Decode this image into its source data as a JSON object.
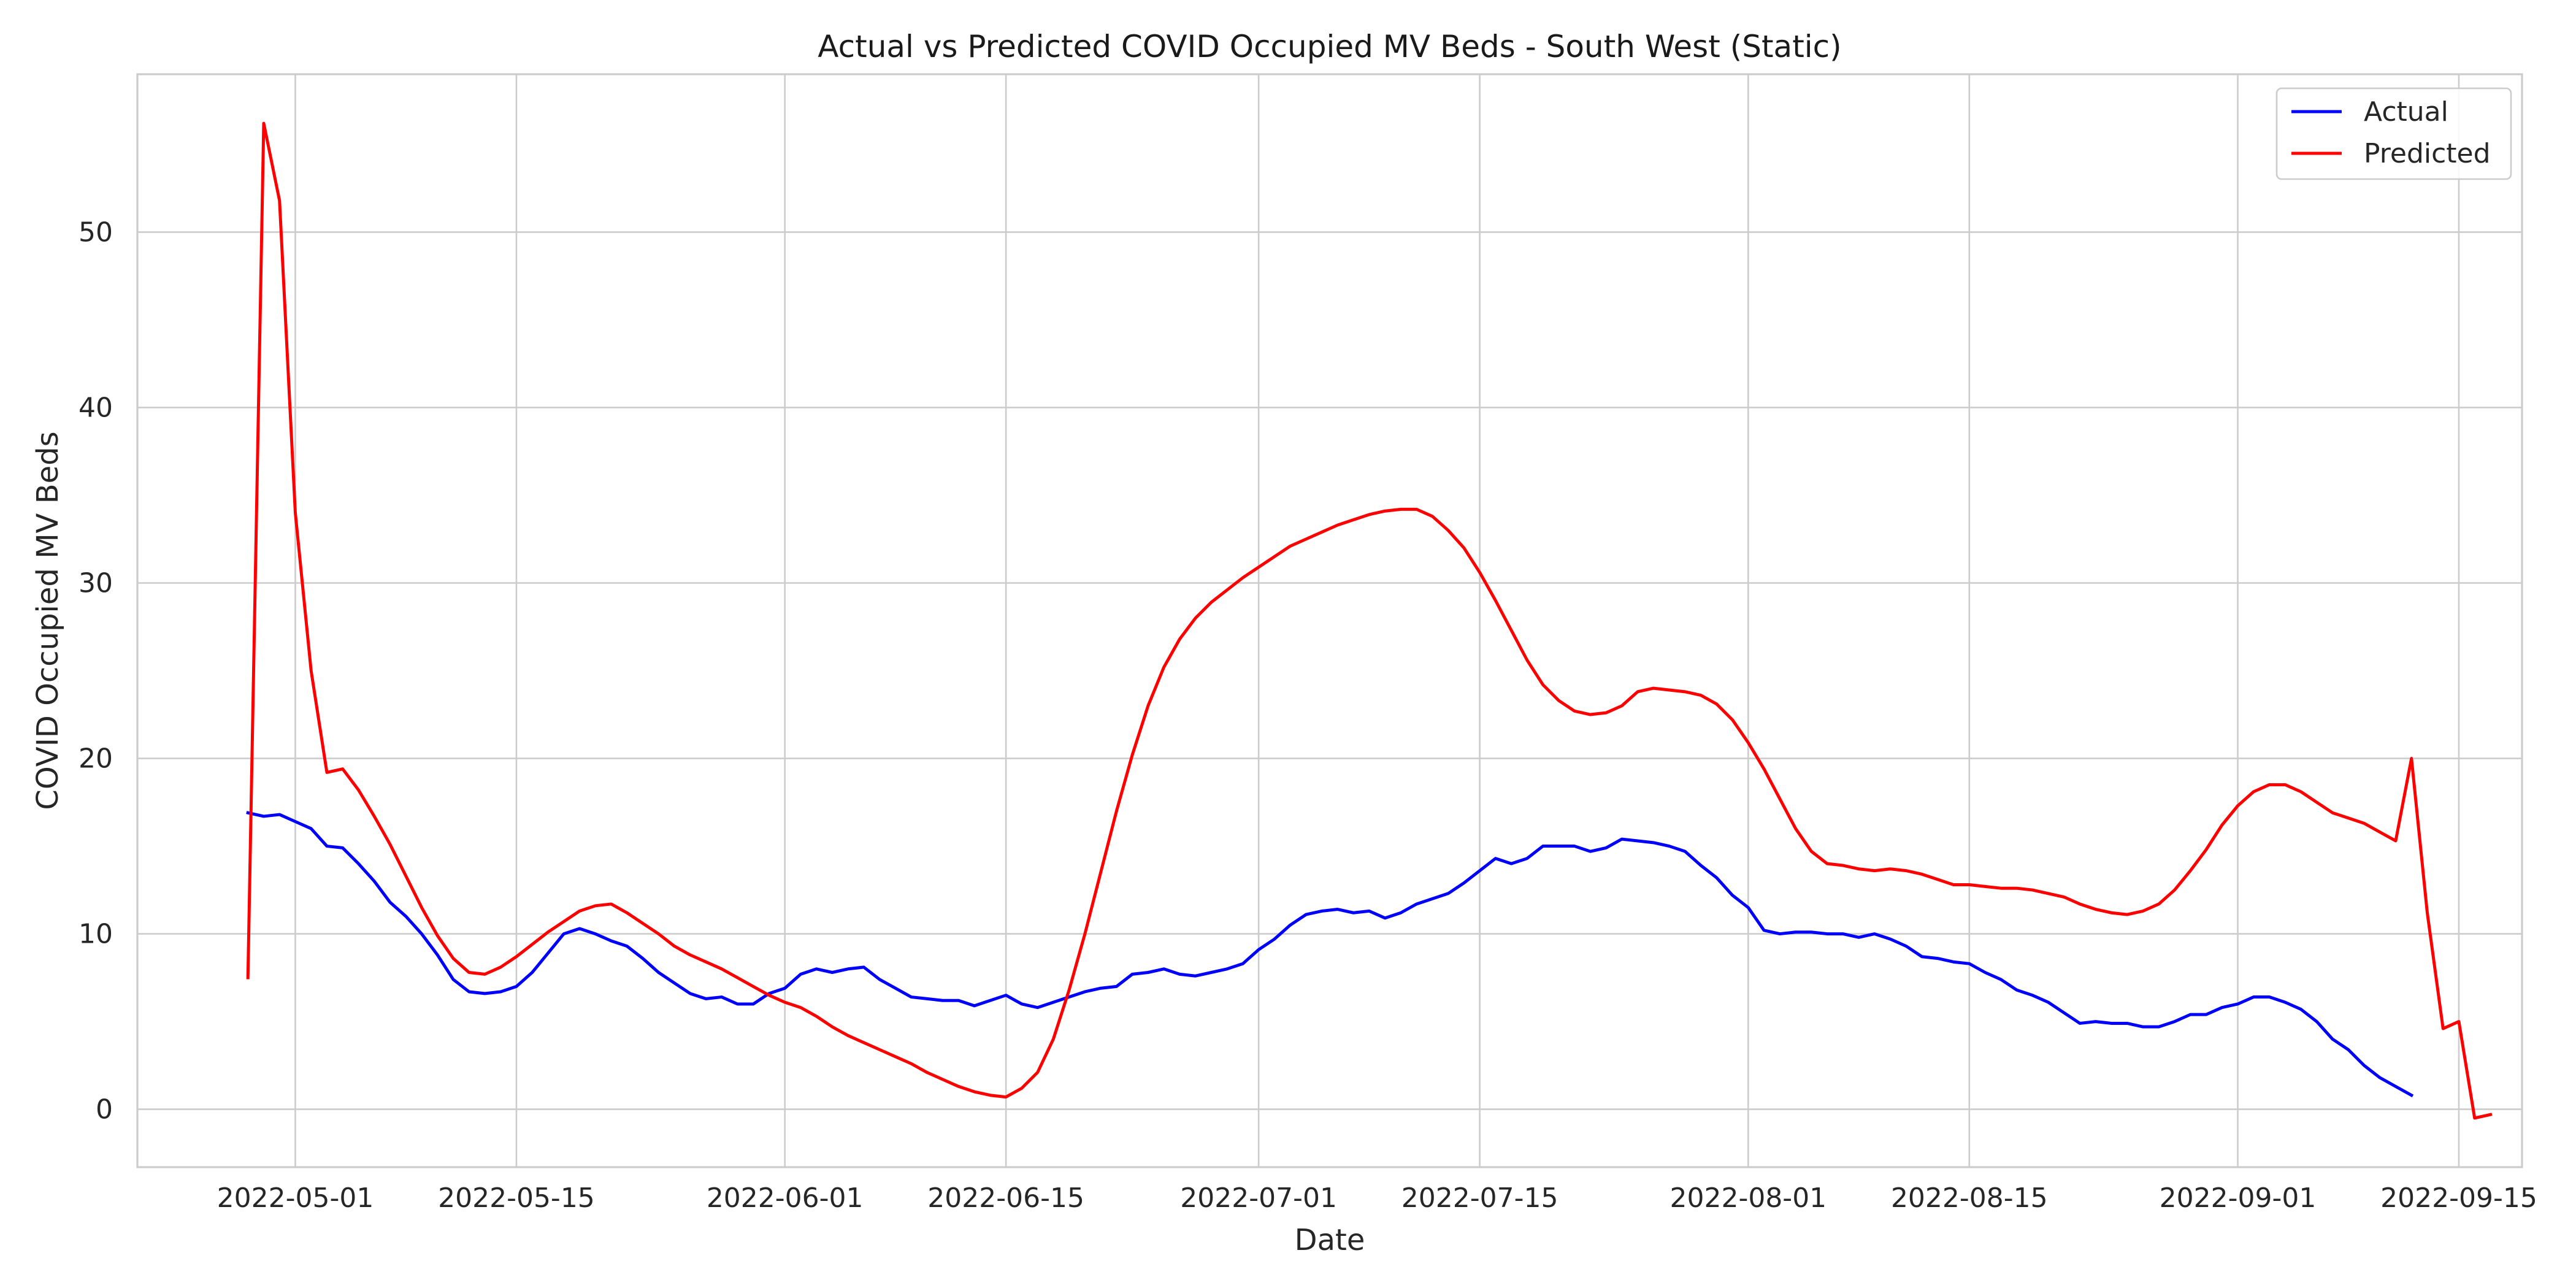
{
  "chart_data": {
    "type": "line",
    "title": "Actual vs Predicted COVID Occupied MV Beds - South West (Static)",
    "xlabel": "Date",
    "ylabel": "COVID Occupied MV Beds",
    "x_start": "2022-04-28",
    "x_step_days": 1,
    "x_ticks": [
      "2022-05-01",
      "2022-05-15",
      "2022-06-01",
      "2022-06-15",
      "2022-07-01",
      "2022-07-15",
      "2022-08-01",
      "2022-08-15",
      "2022-09-01",
      "2022-09-15"
    ],
    "xlim": [
      "2022-04-21",
      "2022-09-19"
    ],
    "y_ticks": [
      0,
      10,
      20,
      30,
      40,
      50
    ],
    "ylim": [
      -3.3,
      59
    ],
    "grid": true,
    "legend_position": "top-right",
    "series": [
      {
        "name": "Actual",
        "color": "#0000ff",
        "values": [
          16.9,
          16.7,
          16.8,
          16.4,
          16.0,
          15.0,
          14.9,
          14.0,
          13.0,
          11.8,
          11.0,
          10.0,
          8.8,
          7.4,
          6.7,
          6.6,
          6.7,
          7.0,
          7.8,
          8.9,
          10.0,
          10.3,
          10.0,
          9.6,
          9.3,
          8.6,
          7.8,
          7.2,
          6.6,
          6.3,
          6.4,
          6.0,
          6.0,
          6.6,
          6.9,
          7.7,
          8.0,
          7.8,
          8.0,
          8.1,
          7.4,
          6.9,
          6.4,
          6.3,
          6.2,
          6.2,
          5.9,
          6.2,
          6.5,
          6.0,
          5.8,
          6.1,
          6.4,
          6.7,
          6.9,
          7.0,
          7.7,
          7.8,
          8.0,
          7.7,
          7.6,
          7.8,
          8.0,
          8.3,
          9.1,
          9.7,
          10.5,
          11.1,
          11.3,
          11.4,
          11.2,
          11.3,
          10.9,
          11.2,
          11.7,
          12.0,
          12.3,
          12.9,
          13.6,
          14.3,
          14.0,
          14.3,
          15.0,
          15.0,
          15.0,
          14.7,
          14.9,
          15.4,
          15.3,
          15.2,
          15.0,
          14.7,
          13.9,
          13.2,
          12.2,
          11.5,
          10.2,
          10.0,
          10.1,
          10.1,
          10.0,
          10.0,
          9.8,
          10.0,
          9.7,
          9.3,
          8.7,
          8.6,
          8.4,
          8.3,
          7.8,
          7.4,
          6.8,
          6.5,
          6.1,
          5.5,
          4.9,
          5.0,
          4.9,
          4.9,
          4.7,
          4.7,
          5.0,
          5.4,
          5.4,
          5.8,
          6.0,
          6.4,
          6.4,
          6.1,
          5.7,
          5.0,
          4.0,
          3.4,
          2.5,
          1.8,
          1.3,
          0.8
        ]
      },
      {
        "name": "Predicted",
        "color": "#ff0000",
        "values": [
          7.5,
          56.2,
          51.8,
          34.0,
          25.0,
          19.2,
          19.4,
          18.2,
          16.7,
          15.1,
          13.3,
          11.5,
          9.9,
          8.6,
          7.8,
          7.7,
          8.1,
          8.7,
          9.4,
          10.1,
          10.7,
          11.3,
          11.6,
          11.7,
          11.2,
          10.6,
          10.0,
          9.3,
          8.8,
          8.4,
          8.0,
          7.5,
          7.0,
          6.5,
          6.1,
          5.8,
          5.3,
          4.7,
          4.2,
          3.8,
          3.4,
          3.0,
          2.6,
          2.1,
          1.7,
          1.3,
          1.0,
          0.8,
          0.7,
          1.2,
          2.1,
          4.0,
          6.8,
          10.0,
          13.5,
          17.0,
          20.2,
          23.0,
          25.2,
          26.8,
          28.0,
          28.9,
          29.6,
          30.3,
          30.9,
          31.5,
          32.1,
          32.5,
          32.9,
          33.3,
          33.6,
          33.9,
          34.1,
          34.2,
          34.2,
          33.8,
          33.0,
          32.0,
          30.6,
          29.0,
          27.3,
          25.6,
          24.2,
          23.3,
          22.7,
          22.5,
          22.6,
          23.0,
          23.8,
          24.0,
          23.9,
          23.8,
          23.6,
          23.1,
          22.2,
          20.9,
          19.4,
          17.7,
          16.0,
          14.7,
          14.0,
          13.9,
          13.7,
          13.6,
          13.7,
          13.6,
          13.4,
          13.1,
          12.8,
          12.8,
          12.7,
          12.6,
          12.6,
          12.5,
          12.3,
          12.1,
          11.7,
          11.4,
          11.2,
          11.1,
          11.3,
          11.7,
          12.5,
          13.6,
          14.8,
          16.2,
          17.3,
          18.1,
          18.5,
          18.5,
          18.1,
          17.5,
          16.9,
          16.6,
          16.3,
          15.8,
          15.3,
          20.0,
          11.2,
          4.6,
          5.0,
          -0.5,
          -0.3
        ]
      }
    ]
  }
}
